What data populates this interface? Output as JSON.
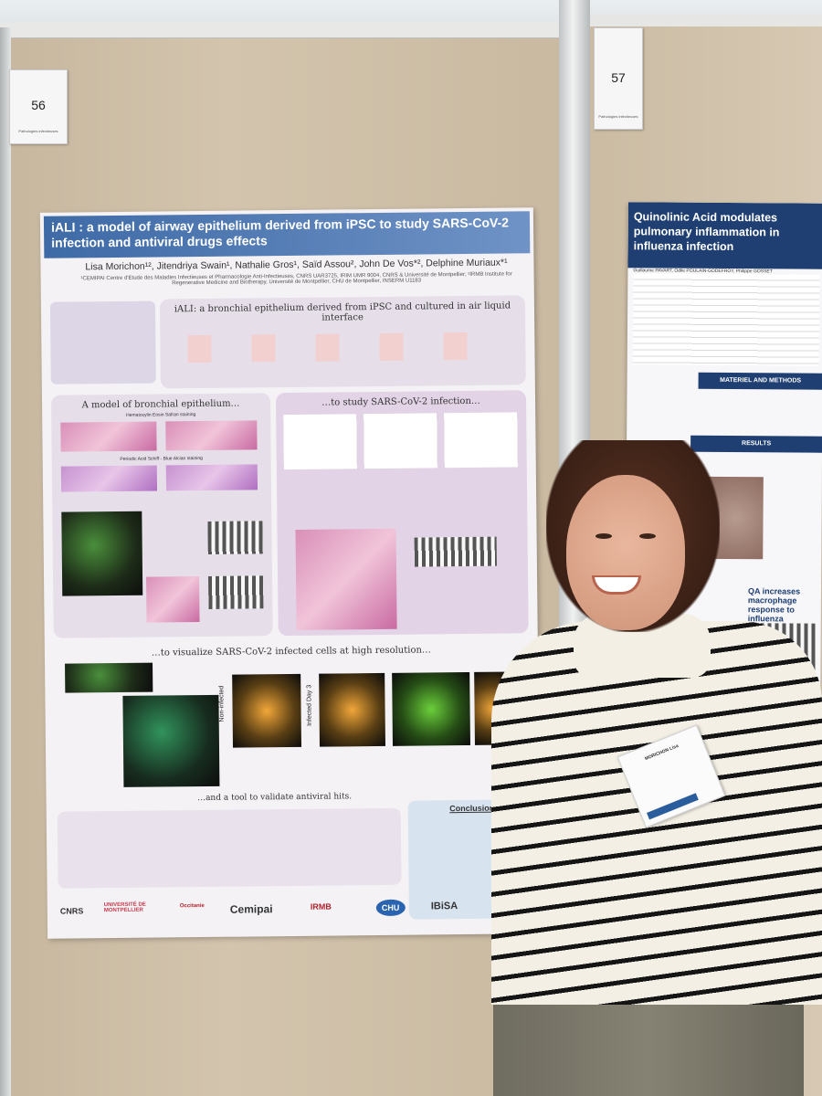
{
  "booth_numbers": {
    "left": "56",
    "left_subtitle": "Pathologies infectieuses",
    "right": "57",
    "right_subtitle": "Pathologies infectieuses"
  },
  "main_poster": {
    "title": "iALI : a model of airway epithelium derived from iPSC to study SARS-CoV-2 infection and antiviral drugs effects",
    "authors": "Lisa Morichon¹², Jitendriya Swain¹, Nathalie Gros¹, Saïd Assou², John De Vos*², Delphine Muriaux*¹",
    "affiliation": "¹CEMIPAI Centre d'Etude des Maladies Infectieuses et Pharmacologie Anti-Infectieuses, CNRS UAR3725, IRIM UMR 9004, CNRS & Université de Montpellier; ²IRMB Institute for Regenerative Medicine and Biotherapy, Université de Montpellier, CHU de Montpellier, INSERM U1183",
    "section_1": "iALI: a bronchial epithelium derived from iPSC and cultured in air liquid interface",
    "section_2": "A model of bronchial epithelium…",
    "section_3": "…to study SARS-CoV-2 infection…",
    "section_4": "…to visualize SARS-CoV-2 infected cells at high resolution…",
    "section_5": "…and a tool to validate antiviral hits.",
    "conclusion_title": "Conclusion",
    "staining_1": "Hematoxylin Eosin Safran staining",
    "staining_2": "Periodic Acid Schiff - Blue Alcian staining",
    "label_non_infected": "Non-infected",
    "label_infected": "Infected Day 3",
    "logos": [
      "CNRS",
      "UNIVERSITÉ DE MONTPELLIER",
      "Occitanie",
      "Cemipai",
      "IRMB",
      "CHU",
      "IBiSA"
    ]
  },
  "right_poster": {
    "title": "Quinolinic Acid modulates pulmonary inflammation in influenza infection",
    "authors": "Guillaume PAVART, Odile POULAIN-GODEFROY, Philippe GOSSET",
    "band_1": "MATERIEL AND METHODS",
    "band_2": "RESULTS",
    "subsection": "QA increases macrophage response to influenza"
  },
  "badge": {
    "name": "MORICHON Lisa"
  }
}
